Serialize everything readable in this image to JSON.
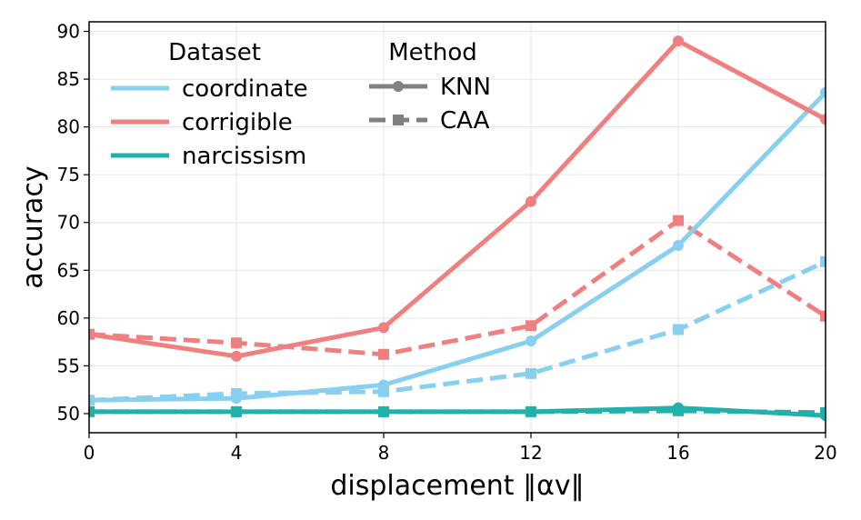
{
  "chart_data": {
    "type": "line",
    "title": "",
    "xlabel": "displacement  ‖αv‖",
    "ylabel": "accuracy",
    "xlim": [
      0,
      20
    ],
    "ylim": [
      48,
      91
    ],
    "x_ticks": [
      0,
      4,
      8,
      12,
      16,
      20
    ],
    "y_ticks": [
      50,
      55,
      60,
      65,
      70,
      75,
      80,
      85,
      90
    ],
    "grid": true,
    "x": [
      0,
      4,
      8,
      12,
      16,
      20
    ],
    "series": [
      {
        "name": "coordinate",
        "method": "KNN",
        "values": [
          51.4,
          51.6,
          53.0,
          57.6,
          67.6,
          83.6
        ]
      },
      {
        "name": "coordinate",
        "method": "CAA",
        "values": [
          51.4,
          52.1,
          52.3,
          54.2,
          58.8,
          65.9
        ]
      },
      {
        "name": "corrigible",
        "method": "KNN",
        "values": [
          58.3,
          56.0,
          59.0,
          72.2,
          89.0,
          80.8
        ]
      },
      {
        "name": "corrigible",
        "method": "CAA",
        "values": [
          58.3,
          57.4,
          56.2,
          59.2,
          70.2,
          60.2
        ]
      },
      {
        "name": "narcissism",
        "method": "KNN",
        "values": [
          50.2,
          50.2,
          50.2,
          50.2,
          50.6,
          49.8
        ]
      },
      {
        "name": "narcissism",
        "method": "CAA",
        "values": [
          50.2,
          50.2,
          50.2,
          50.2,
          50.3,
          50.1
        ]
      }
    ],
    "legend": {
      "placement": "top-left",
      "dataset_title": "Dataset",
      "method_title": "Method",
      "datasets": [
        {
          "label": "coordinate",
          "color": "#89cff0"
        },
        {
          "label": "corrigible",
          "color": "#f08080"
        },
        {
          "label": "narcissism",
          "color": "#20b2aa"
        }
      ],
      "methods": [
        {
          "label": "KNN",
          "style": "solid",
          "marker": "circle"
        },
        {
          "label": "CAA",
          "style": "dashed",
          "marker": "square"
        }
      ],
      "method_color": "#808080"
    }
  }
}
